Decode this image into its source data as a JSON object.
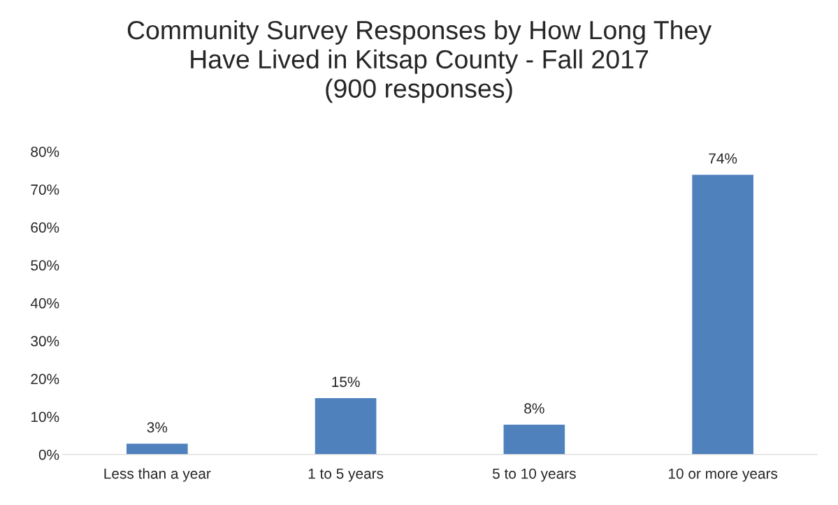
{
  "chart_data": {
    "type": "bar",
    "title": "Community Survey Responses by How Long They\nHave Lived in Kitsap County - Fall 2017\n(900 responses)",
    "categories": [
      "Less than a year",
      "1 to 5 years",
      "5 to 10 years",
      "10 or more years"
    ],
    "values": [
      3,
      15,
      8,
      74
    ],
    "value_labels": [
      "3%",
      "15%",
      "8%",
      "74%"
    ],
    "color": "#4f81bd",
    "ylim": [
      0,
      80
    ],
    "yticks": [
      {
        "value": 0,
        "label": "0%"
      },
      {
        "value": 10,
        "label": "10%"
      },
      {
        "value": 20,
        "label": "20%"
      },
      {
        "value": 30,
        "label": "30%"
      },
      {
        "value": 40,
        "label": "40%"
      },
      {
        "value": 50,
        "label": "50%"
      },
      {
        "value": 60,
        "label": "60%"
      },
      {
        "value": 70,
        "label": "70%"
      },
      {
        "value": 80,
        "label": "80%"
      }
    ]
  }
}
